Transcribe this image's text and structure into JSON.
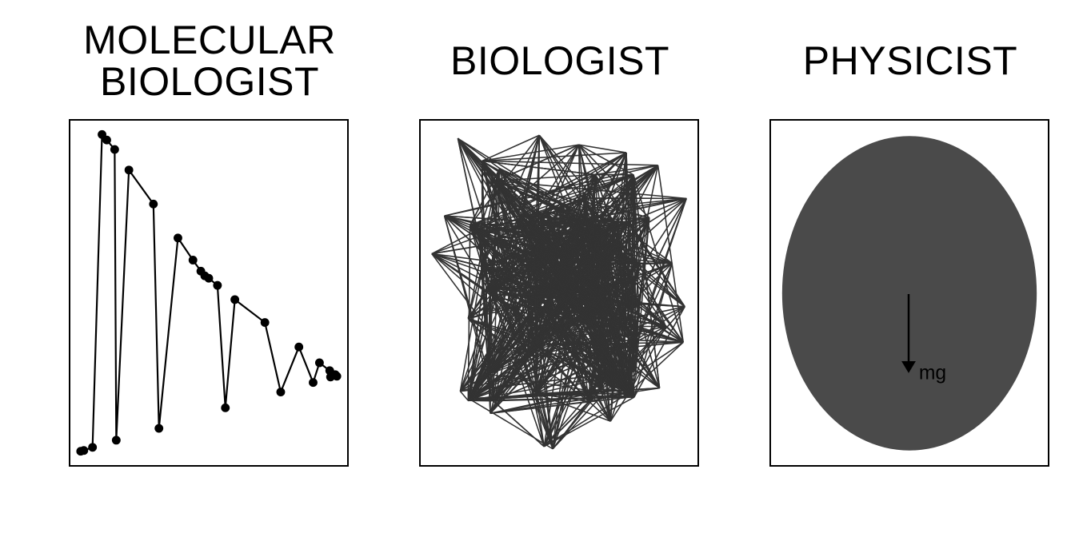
{
  "panels": [
    {
      "title_line1": "MOLECULAR",
      "title_line2": "BIOLOGIST"
    },
    {
      "title": "BIOLOGIST"
    },
    {
      "title": "PHYSICIST",
      "force_label": "mg"
    }
  ],
  "colors": {
    "ink": "#000000",
    "web": "#333333",
    "sphere": "#4a4a4a"
  }
}
